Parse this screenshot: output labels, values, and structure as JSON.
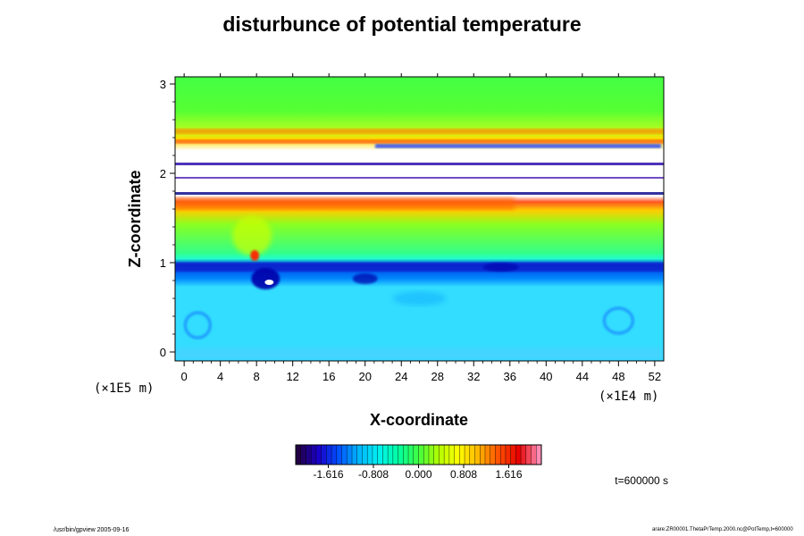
{
  "title": "disturbunce of potential temperature",
  "time_label": "t=600000 s",
  "footer_left": "/usr/bin/gpview 2005-09-16",
  "footer_right": "arare:ZR00001.ThetaPrTemp.2000.nc@PotTemp,t=600000",
  "chart_data": {
    "type": "heatmap",
    "title": "disturbunce of potential temperature",
    "xlabel": "X-coordinate",
    "ylabel": "Z-coordinate",
    "x_unit": "(×1E4 m)",
    "y_unit": "(×1E5 m)",
    "xlim": [
      -1,
      53
    ],
    "ylim": [
      -0.1,
      3.08
    ],
    "x_ticks": [
      "0",
      "4",
      "8",
      "12",
      "16",
      "20",
      "24",
      "28",
      "32",
      "36",
      "40",
      "44",
      "48",
      "52"
    ],
    "y_ticks": [
      "0",
      "1",
      "2",
      "3"
    ],
    "colorbar": {
      "range": [
        -2.2,
        2.2
      ],
      "tick_labels": [
        "-1.616",
        "-0.808",
        "0.000",
        "0.808",
        "1.616"
      ],
      "tick_values": [
        -1.616,
        -0.808,
        0.0,
        0.808,
        1.616
      ],
      "colors": [
        "#220044",
        "#1a00c8",
        "#0050ff",
        "#00b4ff",
        "#00f0f0",
        "#00ffa0",
        "#40ff40",
        "#b4ff00",
        "#ffff00",
        "#ffb400",
        "#ff5000",
        "#e60000",
        "#ff8cb4"
      ]
    },
    "field_bands": [
      {
        "z": [
          -0.1,
          0.45
        ],
        "value": -0.45,
        "description_color": "#33ccff"
      },
      {
        "z": [
          0.45,
          0.9
        ],
        "value": -0.5
      },
      {
        "z": [
          0.9,
          1.05
        ],
        "value": -1.3
      },
      {
        "z": [
          1.05,
          1.55
        ],
        "value": 0.15
      },
      {
        "z": [
          1.55,
          1.7
        ],
        "value": 0.9
      },
      {
        "z": [
          1.7,
          2.3
        ],
        "value": "undefined"
      },
      {
        "z": [
          2.3,
          2.6
        ],
        "value": 0.4
      },
      {
        "z": [
          2.6,
          3.08
        ],
        "value": 0.1
      }
    ]
  }
}
